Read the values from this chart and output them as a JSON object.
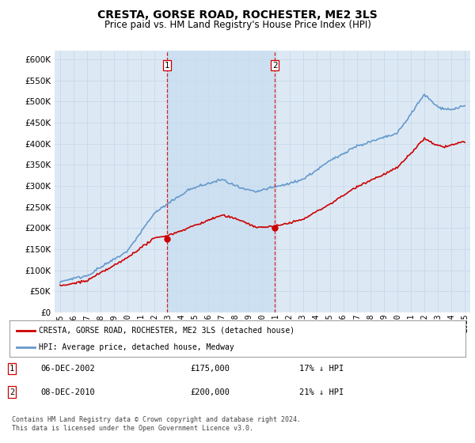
{
  "title": "CRESTA, GORSE ROAD, ROCHESTER, ME2 3LS",
  "subtitle": "Price paid vs. HM Land Registry's House Price Index (HPI)",
  "title_fontsize": 10,
  "subtitle_fontsize": 8.5,
  "background_color": "#ffffff",
  "plot_bg_color": "#dce9f5",
  "grid_color": "#c8d8e8",
  "shade_color": "#c8ddf0",
  "sale1_year": 2002.92,
  "sale1_price": 175000,
  "sale2_year": 2010.92,
  "sale2_price": 200000,
  "vline_color": "#cc0000",
  "sale_dot_color": "#cc0000",
  "hpi_line_color": "#6699cc",
  "price_line_color": "#cc0000",
  "legend_entry1": "CRESTA, GORSE ROAD, ROCHESTER, ME2 3LS (detached house)",
  "legend_entry2": "HPI: Average price, detached house, Medway",
  "note1_label": "1",
  "note1_date": "06-DEC-2002",
  "note1_price": "£175,000",
  "note1_pct": "17% ↓ HPI",
  "note2_label": "2",
  "note2_date": "08-DEC-2010",
  "note2_price": "£200,000",
  "note2_pct": "21% ↓ HPI",
  "footer": "Contains HM Land Registry data © Crown copyright and database right 2024.\nThis data is licensed under the Open Government Licence v3.0.",
  "ylim": [
    0,
    620000
  ],
  "yticks": [
    0,
    50000,
    100000,
    150000,
    200000,
    250000,
    300000,
    350000,
    400000,
    450000,
    500000,
    550000,
    600000
  ],
  "xmin": 1994.6,
  "xmax": 2025.4
}
